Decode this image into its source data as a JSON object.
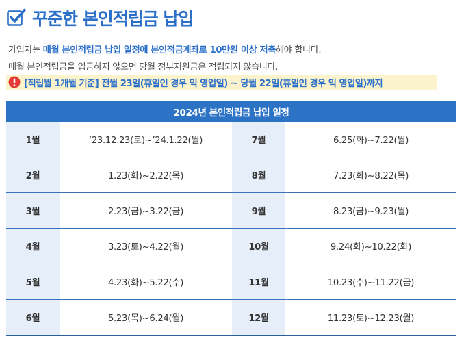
{
  "header": {
    "title": "꾸준한 본인적립금 납입",
    "icon": "checkbox-checked-icon",
    "accent_color": "#2b6fc9"
  },
  "description": {
    "line1_prefix": "가입자는 ",
    "line1_bold": "매월 본인적립금 납입 일정에 본인적금계좌로 10만원 이상 저축",
    "line1_suffix": "해야 합니다.",
    "line2": "매월 본인적립금을 입금하지 않으면 당월 정부지원금은 적립되지 않습니다."
  },
  "notice": {
    "icon": "alert-icon",
    "text": "[적립월 1개월 기준] 전월 23일(휴일인 경우 익 영업일) ~ 당월 22일(휴일인 경우 익 영업일)까지",
    "background": "#fbf3cc"
  },
  "schedule": {
    "title": "2024년 본인적립금 납입 일정",
    "header_color": "#2c73c6",
    "rows": [
      {
        "m1": "1월",
        "p1": "‘23.12.23(토)~’24.1.22(월)",
        "m2": "7월",
        "p2": "6.25(화)~7.22(월)"
      },
      {
        "m1": "2월",
        "p1": "1.23(화)~2.22(목)",
        "m2": "8월",
        "p2": "7.23(화)~8.22(목)"
      },
      {
        "m1": "3월",
        "p1": "2.23(금)~3.22(금)",
        "m2": "9월",
        "p2": "8.23(금)~9.23(월)"
      },
      {
        "m1": "4월",
        "p1": "3.23(토)~4.22(월)",
        "m2": "10월",
        "p2": "9.24(화)~10.22(화)"
      },
      {
        "m1": "5월",
        "p1": "4.23(화)~5.22(수)",
        "m2": "11월",
        "p2": "10.23(수)~11.22(금)"
      },
      {
        "m1": "6월",
        "p1": "5.23(목)~6.24(월)",
        "m2": "12월",
        "p2": "11.23(토)~12.23(월)"
      }
    ]
  }
}
